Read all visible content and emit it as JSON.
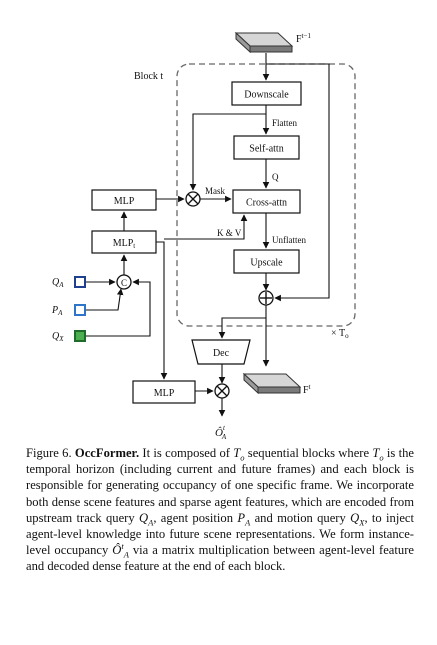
{
  "diagram": {
    "block_label": "Block t",
    "repeat_label": "× T",
    "repeat_subscript": "o",
    "input_feature": "F",
    "input_feature_sup": "t−1",
    "output_feature": "F",
    "output_feature_sup": "t",
    "nodes": {
      "downscale": "Downscale",
      "self_attn": "Self-attn",
      "cross_attn": "Cross-attn",
      "upscale": "Upscale",
      "dec": "Dec",
      "mlp_top": "MLP",
      "mlp_t": "MLP",
      "mlp_t_sub": "t",
      "mlp_bottom": "MLP",
      "concat": "C"
    },
    "edges": {
      "flatten": "Flatten",
      "q": "Q",
      "mask": "Mask",
      "kv": "K & V",
      "unflatten": "Unflatten"
    },
    "queries": [
      {
        "symbol": "Q",
        "sub": "A",
        "color": "#1f3f8f",
        "fill": "#ffffff"
      },
      {
        "symbol": "P",
        "sub": "A",
        "color": "#2e75c8",
        "fill": "#ffffff"
      },
      {
        "symbol": "Q",
        "sub": "X",
        "color": "#1f6b2a",
        "fill": "#4caf50"
      }
    ],
    "output": {
      "symbol": "Ô",
      "sup": "t",
      "sub": "A"
    },
    "colors": {
      "feature_map": "#bdbdbd",
      "feature_map_dark": "#7a7a7a",
      "dashed_border": "#666666"
    }
  },
  "caption": {
    "figure_label": "Figure 6.",
    "title": "OccFormer.",
    "body": [
      {
        "t": " It is composed of "
      },
      {
        "t": "T",
        "i": true
      },
      {
        "t": "o",
        "sub": true,
        "i": true
      },
      {
        "t": " sequential blocks where "
      },
      {
        "t": "T",
        "i": true
      },
      {
        "t": "o",
        "sub": true,
        "i": true
      },
      {
        "t": " is the temporal horizon (including current and future frames) and each block is responsible for generating occupancy of one specific frame. We incorporate both dense scene features and sparse agent features, which are encoded from upstream track query "
      },
      {
        "t": "Q",
        "i": true
      },
      {
        "t": "A",
        "sub": true,
        "i": true
      },
      {
        "t": ", agent position "
      },
      {
        "t": "P",
        "i": true
      },
      {
        "t": "A",
        "sub": true,
        "i": true
      },
      {
        "t": " and motion query "
      },
      {
        "t": "Q",
        "i": true
      },
      {
        "t": "X",
        "sub": true,
        "i": true
      },
      {
        "t": ", to inject agent-level knowledge into future scene representations. We form instance-level occupancy "
      },
      {
        "t": "Ô",
        "i": true
      },
      {
        "t": "t",
        "sup": true,
        "i": true
      },
      {
        "t": "A",
        "sub": true,
        "i": true
      },
      {
        "t": " via a matrix multiplication between agent-level feature and decoded dense feature at the end of each block."
      }
    ]
  }
}
